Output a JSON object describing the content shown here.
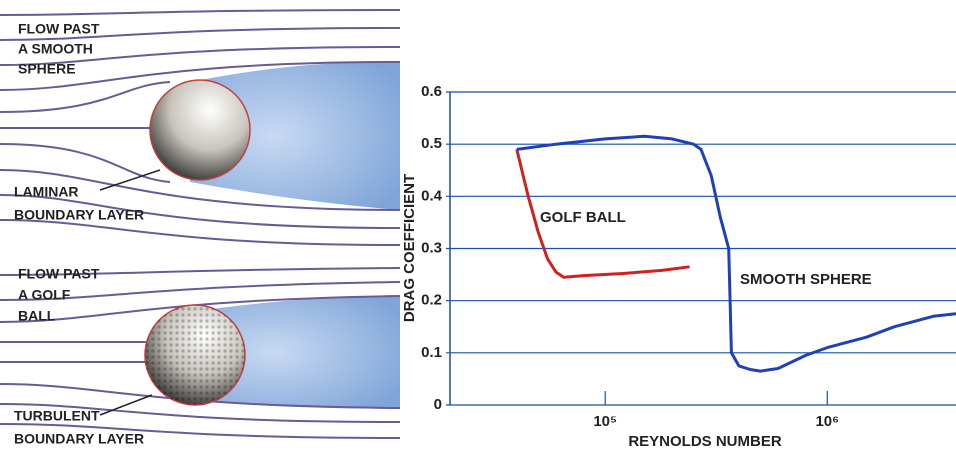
{
  "diagram": {
    "top": {
      "title": [
        "FLOW PAST",
        "A SMOOTH",
        "SPHERE"
      ],
      "label": [
        "LAMINAR",
        "BOUNDARY LAYER"
      ]
    },
    "bottom": {
      "title": [
        "FLOW PAST",
        "A GOLF",
        "BALL"
      ],
      "label": [
        "TURBULENT",
        "BOUNDARY LAYER"
      ]
    }
  },
  "chart_data": {
    "type": "line",
    "x_label": "REYNOLDS NUMBER",
    "y_label": "DRAG COEFFICIENT",
    "xscale": "log",
    "grid": true,
    "xlim": [
      20000,
      3800000
    ],
    "xticks": [
      {
        "value": 100000,
        "label": "10⁵"
      },
      {
        "value": 1000000,
        "label": "10⁶"
      }
    ],
    "ylim": [
      0,
      0.6
    ],
    "yticks": [
      0,
      0.1,
      0.2,
      0.3,
      0.4,
      0.5,
      0.6
    ],
    "series": [
      {
        "name": "GOLF BALL",
        "color": "#d02020",
        "x": [
          40000,
          45000,
          50000,
          55000,
          60000,
          65000,
          80000,
          120000,
          180000,
          240000
        ],
        "values": [
          0.49,
          0.4,
          0.33,
          0.28,
          0.255,
          0.245,
          0.248,
          0.252,
          0.258,
          0.265
        ]
      },
      {
        "name": "SMOOTH SPHERE",
        "color": "#2040b8",
        "x": [
          40000,
          60000,
          100000,
          150000,
          200000,
          250000,
          270000,
          300000,
          330000,
          360000,
          365000,
          370000,
          400000,
          450000,
          500000,
          600000,
          800000,
          1000000,
          1500000,
          2000000,
          3000000,
          3800000
        ],
        "values": [
          0.49,
          0.5,
          0.51,
          0.515,
          0.51,
          0.5,
          0.49,
          0.44,
          0.36,
          0.3,
          0.2,
          0.1,
          0.075,
          0.068,
          0.065,
          0.07,
          0.095,
          0.11,
          0.13,
          0.15,
          0.17,
          0.175
        ]
      }
    ]
  }
}
